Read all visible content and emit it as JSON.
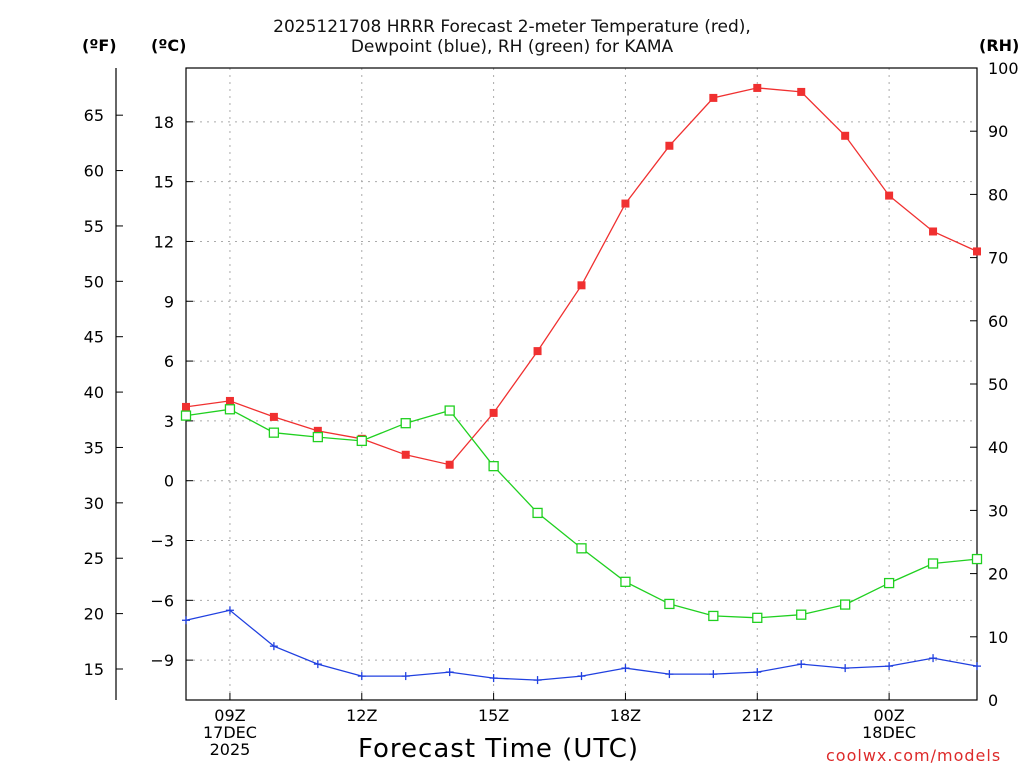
{
  "title_line1": "2025121708 HRRR Forecast 2-meter Temperature (red),",
  "title_line2": "Dewpoint (blue), RH (green) for KAMA",
  "unit_f": "(ºF)",
  "unit_c": "(ºC)",
  "unit_rh": "(RH)",
  "xlabel": "Forecast Time (UTC)",
  "credit": "coolwx.com/models",
  "chart_data": {
    "type": "line",
    "title": "2025121708 HRRR Forecast 2-meter Temperature (red), Dewpoint (blue), RH (green) for KAMA",
    "xlabel": "Forecast Time (UTC)",
    "x_hours_utc": [
      8,
      9,
      10,
      11,
      12,
      13,
      14,
      15,
      16,
      17,
      18,
      19,
      20,
      21,
      22,
      23,
      24,
      25,
      26
    ],
    "x_ticks": [
      {
        "hour": 9,
        "lines": [
          "09Z",
          "17DEC",
          "2025"
        ]
      },
      {
        "hour": 12,
        "lines": [
          "12Z"
        ]
      },
      {
        "hour": 15,
        "lines": [
          "15Z"
        ]
      },
      {
        "hour": 18,
        "lines": [
          "18Z"
        ]
      },
      {
        "hour": 21,
        "lines": [
          "21Z"
        ]
      },
      {
        "hour": 24,
        "lines": [
          "00Z",
          "18DEC"
        ]
      }
    ],
    "xlim": [
      8,
      26
    ],
    "celsius_axis": {
      "ylim": [
        -11,
        20.7
      ],
      "ticks": [
        18,
        15,
        12,
        9,
        6,
        3,
        0,
        -3,
        -6,
        -9
      ]
    },
    "fahrenheit_axis": {
      "ticks": [
        65,
        60,
        55,
        50,
        45,
        40,
        35,
        30,
        25,
        20,
        15
      ]
    },
    "rh_axis": {
      "ylim": [
        0,
        100
      ],
      "ticks": [
        100,
        90,
        80,
        70,
        60,
        50,
        40,
        30,
        20,
        10,
        0
      ]
    },
    "series": [
      {
        "name": "Temperature",
        "units": "C",
        "color": "#f03030",
        "marker": "filled-square",
        "values": [
          3.7,
          4.0,
          3.2,
          2.5,
          2.1,
          1.3,
          0.8,
          3.4,
          6.5,
          9.8,
          13.9,
          16.8,
          19.2,
          19.7,
          19.5,
          17.3,
          14.3,
          12.5,
          11.5
        ]
      },
      {
        "name": "Dewpoint",
        "units": "C",
        "color": "#2040e0",
        "marker": "plus",
        "values": [
          -7.0,
          -6.5,
          -8.3,
          -9.2,
          -9.8,
          -9.8,
          -9.6,
          -9.9,
          -10.0,
          -9.8,
          -9.4,
          -9.7,
          -9.7,
          -9.6,
          -9.2,
          -9.4,
          -9.3,
          -8.9,
          -9.3
        ]
      },
      {
        "name": "RH",
        "units": "%",
        "color": "#20d020",
        "marker": "open-square",
        "values": [
          45,
          46,
          42.3,
          41.6,
          41,
          43.8,
          45.8,
          37,
          29.6,
          24,
          18.7,
          15.2,
          13.3,
          13,
          13.5,
          15.1,
          18.5,
          21.6,
          22.3
        ]
      }
    ]
  }
}
